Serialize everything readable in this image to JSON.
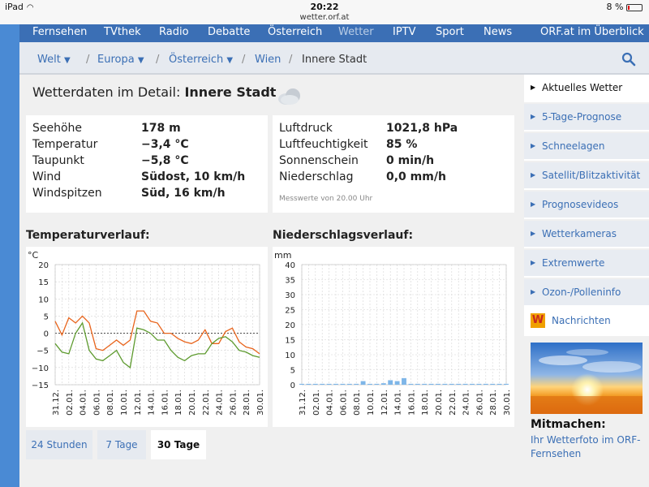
{
  "status": {
    "device": "iPad",
    "time": "20:22",
    "url": "wetter.orf.at",
    "battery": "8 %"
  },
  "topnav": [
    {
      "label": "Fernsehen",
      "active": false
    },
    {
      "label": "TVthek",
      "active": false
    },
    {
      "label": "Radio",
      "active": false
    },
    {
      "label": "Debatte",
      "active": false
    },
    {
      "label": "Österreich",
      "active": false
    },
    {
      "label": "Wetter",
      "active": true
    },
    {
      "label": "IPTV",
      "active": false
    },
    {
      "label": "Sport",
      "active": false
    },
    {
      "label": "News",
      "active": false
    },
    {
      "label": "ORF.at im Überblick",
      "active": false
    }
  ],
  "breadcrumb": [
    {
      "label": "Welt",
      "dropdown": true
    },
    {
      "label": "Europa",
      "dropdown": true
    },
    {
      "label": "Österreich",
      "dropdown": true
    },
    {
      "label": "Wien",
      "dropdown": false
    },
    {
      "label": "Innere Stadt",
      "dropdown": false
    }
  ],
  "detail": {
    "title_prefix": "Wetterdaten im Detail:",
    "location": "Innere Stadt",
    "weather_icon": "cloud-icon"
  },
  "left_values": [
    {
      "label": "Seehöhe",
      "value": "178 m"
    },
    {
      "label": "Temperatur",
      "value": "−3,4 °C"
    },
    {
      "label": "Taupunkt",
      "value": "−5,8 °C"
    },
    {
      "label": "Wind",
      "value": "Südost, 10 km/h"
    },
    {
      "label": "Windspitzen",
      "value": "Süd, 16 km/h"
    }
  ],
  "right_values": [
    {
      "label": "Luftdruck",
      "value": "1021,8 hPa"
    },
    {
      "label": "Luftfeuchtigkeit",
      "value": "85 %"
    },
    {
      "label": "Sonnenschein",
      "value": "0 min/h"
    },
    {
      "label": "Niederschlag",
      "value": "0,0 mm/h"
    }
  ],
  "measure_note": "Messwerte von 20.00 Uhr",
  "chart_data": [
    {
      "type": "line",
      "title": "Temperaturverlauf:",
      "ylabel": "°C",
      "ylim": [
        -15,
        20
      ],
      "yticks": [
        20,
        15,
        10,
        5,
        0,
        -5,
        -10,
        -15
      ],
      "xtick_labels": [
        "31.12.",
        "02.01.",
        "04.01.",
        "06.01.",
        "08.01.",
        "10.01.",
        "12.01.",
        "14.01.",
        "16.01.",
        "18.01.",
        "20.01.",
        "22.01.",
        "24.01.",
        "26.01.",
        "28.01.",
        "30.01."
      ],
      "grid": true,
      "colors": [
        "#e8641c",
        "#5d9a2e"
      ],
      "series": [
        {
          "values": [
            3.5,
            -0.5,
            4.5,
            3,
            5,
            3,
            -4.5,
            -5,
            -3.5,
            -2,
            -3.5,
            -2,
            6.5,
            6.5,
            3.5,
            3,
            0,
            0,
            -1.5,
            -2.5,
            -3,
            -2,
            1,
            -3,
            -3,
            0.5,
            1.5,
            -2.5,
            -4,
            -4.5,
            -6
          ]
        },
        {
          "values": [
            -3,
            -5.5,
            -6,
            0,
            3,
            -5,
            -7.5,
            -8,
            -6.5,
            -5,
            -8.5,
            -10,
            1.5,
            1,
            0,
            -2,
            -2,
            -5,
            -7,
            -8,
            -6.5,
            -6,
            -6,
            -3,
            -1.5,
            -1,
            -2.5,
            -5,
            -5.5,
            -6.5,
            -7
          ]
        }
      ]
    },
    {
      "type": "bar",
      "title": "Niederschlagsverlauf:",
      "ylabel": "mm",
      "ylim": [
        0,
        40
      ],
      "yticks": [
        40,
        35,
        30,
        25,
        20,
        15,
        10,
        5,
        0
      ],
      "xtick_labels": [
        "31.12.",
        "02.01.",
        "04.01.",
        "06.01.",
        "08.01.",
        "10.01.",
        "12.01.",
        "14.01.",
        "16.01.",
        "18.01.",
        "20.01.",
        "22.01.",
        "24.01.",
        "26.01.",
        "28.01.",
        "30.01."
      ],
      "grid": true,
      "colors": [
        "#7eb6e8"
      ],
      "values": [
        0.3,
        0.3,
        0.3,
        0.3,
        0.3,
        0.3,
        0.3,
        0.3,
        0.3,
        1.2,
        0.3,
        0.3,
        0.5,
        1.5,
        1.2,
        2.2,
        0.3,
        0.3,
        0.3,
        0.3,
        0.3,
        0.3,
        0.3,
        0.3,
        0.3,
        0.3,
        0.3,
        0.3,
        0.3,
        0.3,
        0.3
      ]
    }
  ],
  "tabs": [
    {
      "label": "24 Stunden",
      "active": false
    },
    {
      "label": "7 Tage",
      "active": false
    },
    {
      "label": "30 Tage",
      "active": true
    }
  ],
  "rightnav": [
    {
      "label": "Aktuelles Wetter",
      "current": true
    },
    {
      "label": "5-Tage-Prognose",
      "current": false
    },
    {
      "label": "Schneelagen",
      "current": false
    },
    {
      "label": "Satellit/Blitzaktivität",
      "current": false
    },
    {
      "label": "Prognosevideos",
      "current": false
    },
    {
      "label": "Wetterkameras",
      "current": false
    },
    {
      "label": "Extremwerte",
      "current": false
    },
    {
      "label": "Ozon-/Polleninfo",
      "current": false
    }
  ],
  "news": {
    "logo": "W",
    "label": "Nachrichten"
  },
  "promo": {
    "heading": "Mitmachen:",
    "link": "Ihr Wetterfoto im ORF-Fernsehen"
  }
}
